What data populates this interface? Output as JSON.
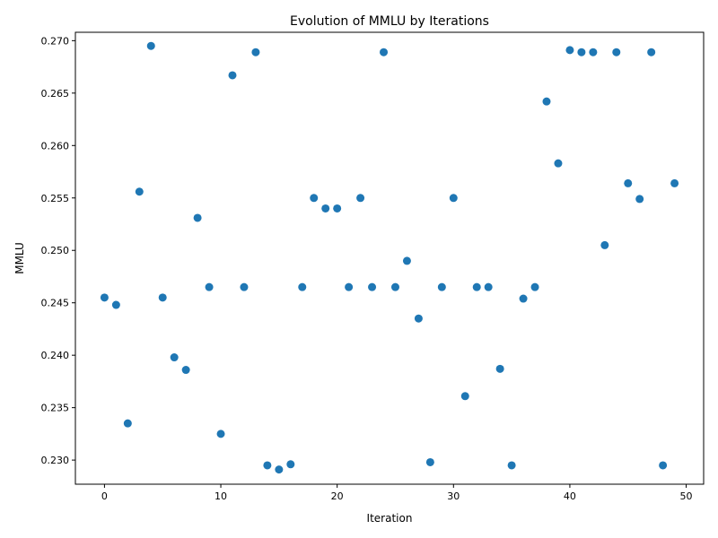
{
  "chart_data": {
    "type": "scatter",
    "title": "Evolution of MMLU by Iterations",
    "xlabel": "Iteration",
    "ylabel": "MMLU",
    "xlim": [
      -2.5,
      51.5
    ],
    "ylim": [
      0.2277,
      0.2708
    ],
    "xticks": [
      0,
      10,
      20,
      30,
      40,
      50
    ],
    "yticks": [
      0.23,
      0.235,
      0.24,
      0.245,
      0.25,
      0.255,
      0.26,
      0.265,
      0.27
    ],
    "grid": false,
    "color": "#1f77b4",
    "x": [
      0,
      1,
      2,
      3,
      4,
      5,
      6,
      7,
      8,
      9,
      10,
      11,
      12,
      13,
      14,
      15,
      16,
      17,
      18,
      19,
      20,
      21,
      22,
      23,
      24,
      25,
      26,
      27,
      28,
      29,
      30,
      31,
      32,
      33,
      34,
      35,
      36,
      37,
      38,
      39,
      40,
      41,
      42,
      43,
      44,
      45,
      46,
      47,
      48,
      49
    ],
    "y": [
      0.2455,
      0.2448,
      0.2335,
      0.2556,
      0.2695,
      0.2455,
      0.2398,
      0.2386,
      0.2531,
      0.2465,
      0.2325,
      0.2667,
      0.2465,
      0.2689,
      0.2295,
      0.2291,
      0.2296,
      0.2465,
      0.255,
      0.254,
      0.254,
      0.2465,
      0.255,
      0.2465,
      0.2689,
      0.2465,
      0.249,
      0.2435,
      0.2298,
      0.2465,
      0.255,
      0.2361,
      0.2465,
      0.2465,
      0.2387,
      0.2295,
      0.2454,
      0.2465,
      0.2642,
      0.2583,
      0.2691,
      0.2689,
      0.2689,
      0.2505,
      0.2689,
      0.2564,
      0.2549,
      0.2689,
      0.2295,
      0.2564
    ]
  }
}
